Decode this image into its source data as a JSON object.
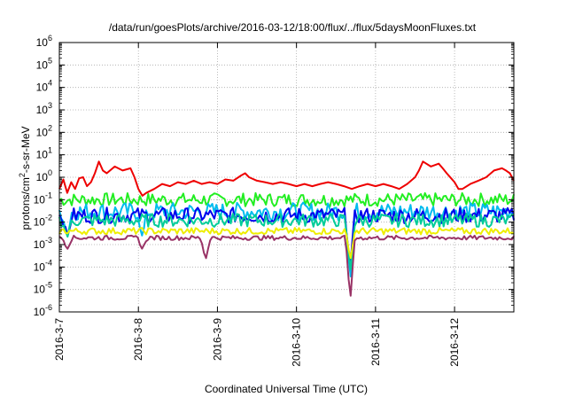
{
  "chart_data": {
    "type": "line",
    "title": "/data/run/goesPlots/archive/2016-03-12/18:00/flux/../flux/5daysMoonFluxes.txt",
    "xlabel": "Coordinated Universal Time (UTC)",
    "ylabel_parts": {
      "pre": "protons/cm",
      "sup": "2",
      "post": "-s-sr-MeV"
    },
    "y_scale": "log",
    "ylim_exponents": [
      -6,
      6
    ],
    "y_tick_labels": [
      {
        "base": "10",
        "exp": "6"
      },
      {
        "base": "10",
        "exp": "5"
      },
      {
        "base": "10",
        "exp": "4"
      },
      {
        "base": "10",
        "exp": "3"
      },
      {
        "base": "10",
        "exp": "2"
      },
      {
        "base": "10",
        "exp": "1"
      },
      {
        "base": "10",
        "exp": "0"
      },
      {
        "base": "10",
        "exp": "-1"
      },
      {
        "base": "10",
        "exp": "-2"
      },
      {
        "base": "10",
        "exp": "-3"
      },
      {
        "base": "10",
        "exp": "-4"
      },
      {
        "base": "10",
        "exp": "-5"
      },
      {
        "base": "10",
        "exp": "-6"
      }
    ],
    "x_tick_labels": [
      "2016-3-7",
      "2016-3-8",
      "2016-3-9",
      "2016-3-10",
      "2016-3-11",
      "2016-3-12"
    ],
    "x_range_days": [
      0,
      5.75
    ],
    "grid": true,
    "series": [
      {
        "color": "#ee0000",
        "points": [
          [
            0.0,
            0.3
          ],
          [
            0.05,
            0.8
          ],
          [
            0.1,
            0.2
          ],
          [
            0.15,
            0.6
          ],
          [
            0.2,
            0.3
          ],
          [
            0.25,
            0.9
          ],
          [
            0.3,
            1.0
          ],
          [
            0.35,
            0.4
          ],
          [
            0.4,
            0.6
          ],
          [
            0.45,
            1.5
          ],
          [
            0.5,
            5.0
          ],
          [
            0.55,
            2.0
          ],
          [
            0.6,
            1.5
          ],
          [
            0.7,
            3.0
          ],
          [
            0.8,
            2.0
          ],
          [
            0.9,
            2.5
          ],
          [
            0.95,
            1.0
          ],
          [
            1.0,
            0.3
          ],
          [
            1.05,
            0.15
          ],
          [
            1.1,
            0.2
          ],
          [
            1.2,
            0.3
          ],
          [
            1.3,
            0.5
          ],
          [
            1.4,
            0.4
          ],
          [
            1.5,
            0.6
          ],
          [
            1.6,
            0.5
          ],
          [
            1.7,
            0.7
          ],
          [
            1.8,
            0.5
          ],
          [
            1.9,
            0.6
          ],
          [
            2.0,
            0.5
          ],
          [
            2.1,
            0.8
          ],
          [
            2.2,
            0.7
          ],
          [
            2.3,
            1.2
          ],
          [
            2.35,
            1.5
          ],
          [
            2.4,
            1.0
          ],
          [
            2.5,
            0.7
          ],
          [
            2.6,
            0.6
          ],
          [
            2.7,
            0.5
          ],
          [
            2.8,
            0.6
          ],
          [
            2.9,
            0.5
          ],
          [
            3.0,
            0.4
          ],
          [
            3.1,
            0.5
          ],
          [
            3.2,
            0.4
          ],
          [
            3.3,
            0.5
          ],
          [
            3.4,
            0.6
          ],
          [
            3.5,
            0.5
          ],
          [
            3.6,
            0.4
          ],
          [
            3.7,
            0.3
          ],
          [
            3.8,
            0.4
          ],
          [
            3.9,
            0.5
          ],
          [
            4.0,
            0.4
          ],
          [
            4.1,
            0.5
          ],
          [
            4.2,
            0.4
          ],
          [
            4.3,
            0.3
          ],
          [
            4.4,
            0.5
          ],
          [
            4.5,
            1.0
          ],
          [
            4.55,
            2.0
          ],
          [
            4.6,
            5.0
          ],
          [
            4.7,
            3.0
          ],
          [
            4.8,
            4.0
          ],
          [
            4.85,
            2.5
          ],
          [
            4.9,
            1.5
          ],
          [
            5.0,
            0.6
          ],
          [
            5.05,
            0.3
          ],
          [
            5.1,
            0.3
          ],
          [
            5.2,
            0.5
          ],
          [
            5.3,
            0.7
          ],
          [
            5.4,
            1.0
          ],
          [
            5.5,
            2.0
          ],
          [
            5.6,
            2.5
          ],
          [
            5.65,
            2.0
          ],
          [
            5.7,
            1.5
          ],
          [
            5.75,
            0.7
          ]
        ]
      },
      {
        "color": "#22ee22",
        "base": 0.1,
        "spread": 0.3,
        "dips": []
      },
      {
        "color": "#00bbee",
        "base": 0.03,
        "spread": 0.4,
        "dips": [
          [
            0.1,
            0.002
          ],
          [
            1.05,
            0.002
          ],
          [
            3.68,
            2e-05
          ]
        ]
      },
      {
        "color": "#0000ee",
        "base": 0.02,
        "spread": 0.35,
        "dips": [
          [
            0.1,
            0.002
          ],
          [
            3.68,
            0.0001
          ]
        ]
      },
      {
        "color": "#00cc99",
        "base": 0.012,
        "spread": 0.3,
        "dips": [
          [
            0.1,
            0.002
          ],
          [
            3.68,
            5e-05
          ]
        ]
      },
      {
        "color": "#eeee00",
        "base": 0.004,
        "spread": 0.15,
        "dips": [
          [
            3.68,
            0.0002
          ]
        ]
      },
      {
        "color": "#993366",
        "base": 0.002,
        "spread": 0.1,
        "dips": [
          [
            0.1,
            0.0006
          ],
          [
            1.05,
            0.0006
          ],
          [
            1.85,
            0.0002
          ],
          [
            3.68,
            3e-06
          ]
        ]
      }
    ]
  }
}
